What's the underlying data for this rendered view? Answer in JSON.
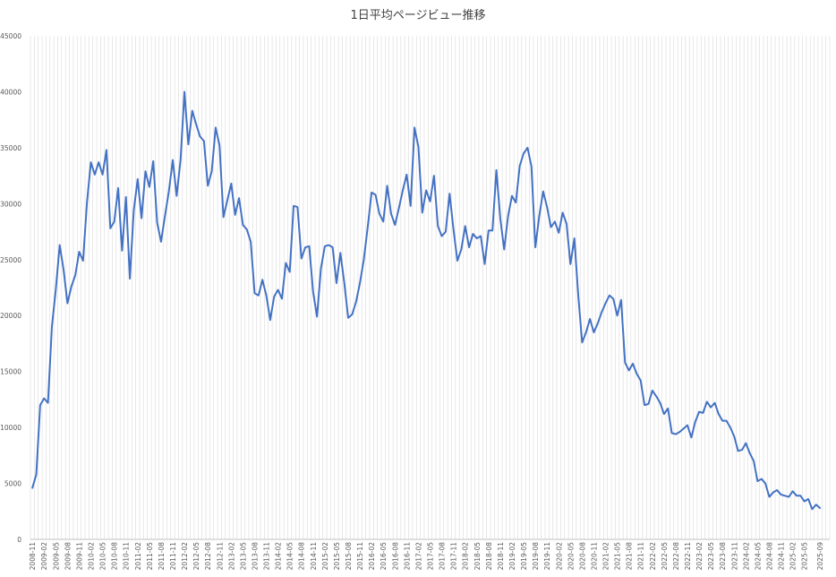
{
  "chart_data": {
    "type": "line",
    "title": "1日平均ページビュー推移",
    "xlabel": "",
    "ylabel": "",
    "ylim": [
      0,
      45000
    ],
    "yticks": [
      0,
      5000,
      10000,
      15000,
      20000,
      25000,
      30000,
      35000,
      40000,
      45000
    ],
    "grid": "vertical lines at every month",
    "legend": "none",
    "colors": {
      "line": "#4472c4",
      "grid": "#d9d9d9",
      "axis": "#bfbfbf",
      "text": "#595959"
    },
    "x_start": "2008-11",
    "x_end": "2025-11",
    "x_tick_step_months": 3,
    "x_tick_labels": [
      "2008-11",
      "2009-02",
      "2009-05",
      "2009-08",
      "2009-11",
      "2010-02",
      "2010-05",
      "2010-08",
      "2010-11",
      "2011-02",
      "2011-05",
      "2011-08",
      "2011-11",
      "2012-02",
      "2012-05",
      "2012-08",
      "2012-11",
      "2013-02",
      "2013-05",
      "2013-08",
      "2013-11",
      "2014-02",
      "2014-05",
      "2014-08",
      "2014-11",
      "2015-02",
      "2015-05",
      "2015-08",
      "2015-11",
      "2016-02",
      "2016-05",
      "2016-08",
      "2016-11",
      "2017-02",
      "2017-05",
      "2017-08",
      "2017-11",
      "2018-02",
      "2018-05",
      "2018-08",
      "2018-11",
      "2019-02",
      "2019-05",
      "2019-08",
      "2019-11",
      "2020-02",
      "2020-05",
      "2020-08",
      "2020-11",
      "2021-02",
      "2021-05",
      "2021-08",
      "2021-11",
      "2022-02",
      "2022-05",
      "2022-08",
      "2022-11",
      "2023-02",
      "2023-05",
      "2023-08",
      "2023-11",
      "2024-02",
      "2024-05",
      "2024-08",
      "2024-11",
      "2025-02",
      "2025-05",
      "2025-09"
    ],
    "series": [
      {
        "values": [
          4600,
          5800,
          12000,
          12600,
          12200,
          19000,
          22300,
          26300,
          24100,
          21100,
          22600,
          23600,
          25700,
          24900,
          30100,
          33700,
          32600,
          33700,
          32600,
          34800,
          27800,
          28400,
          31400,
          25800,
          30600,
          23300,
          29400,
          32200,
          28700,
          32900,
          31500,
          33800,
          28300,
          26600,
          28900,
          31100,
          33900,
          30700,
          33900,
          40000,
          35300,
          38300,
          37100,
          36000,
          35600,
          31600,
          32900,
          36800,
          35200,
          28800,
          30300,
          31800,
          29000,
          30500,
          28100,
          27700,
          26600,
          22000,
          21800,
          23200,
          21800,
          19600,
          21700,
          22300,
          21500,
          24700,
          23900,
          29800,
          29700,
          25100,
          26100,
          26200,
          22100,
          19900,
          24200,
          26200,
          26300,
          26100,
          22900,
          25600,
          22900,
          19800,
          20100,
          21200,
          22900,
          25000,
          27900,
          31000,
          30800,
          29100,
          28400,
          31600,
          29100,
          28100,
          29600,
          31200,
          32600,
          29800,
          36800,
          35100,
          29200,
          31200,
          30200,
          32500,
          28000,
          27100,
          27500,
          30900,
          27700,
          24900,
          25900,
          28000,
          26100,
          27300,
          26900,
          27100,
          24600,
          27600,
          27600,
          33000,
          28700,
          25900,
          28900,
          30700,
          30100,
          33400,
          34500,
          35000,
          33300,
          26100,
          28900,
          31100,
          29700,
          27900,
          28400,
          27400,
          29200,
          28200,
          24600,
          26900,
          21800,
          17600,
          18500,
          19700,
          18500,
          19300,
          20300,
          21100,
          21800,
          21500,
          20000,
          21400,
          15800,
          15100,
          15700,
          14800,
          14200,
          12000,
          12100,
          13300,
          12800,
          12200,
          11200,
          11700,
          9500,
          9400,
          9600,
          9900,
          10200,
          9100,
          10500,
          11400,
          11300,
          12300,
          11800,
          12200,
          11200,
          10600,
          10600,
          10000,
          9200,
          7900,
          8000,
          8600,
          7700,
          7000,
          5200,
          5400,
          5000,
          3800,
          4200,
          4400,
          4000,
          3900,
          3800,
          4300,
          3900,
          3900,
          3400,
          3600,
          2700,
          3100,
          2800
        ]
      }
    ]
  }
}
